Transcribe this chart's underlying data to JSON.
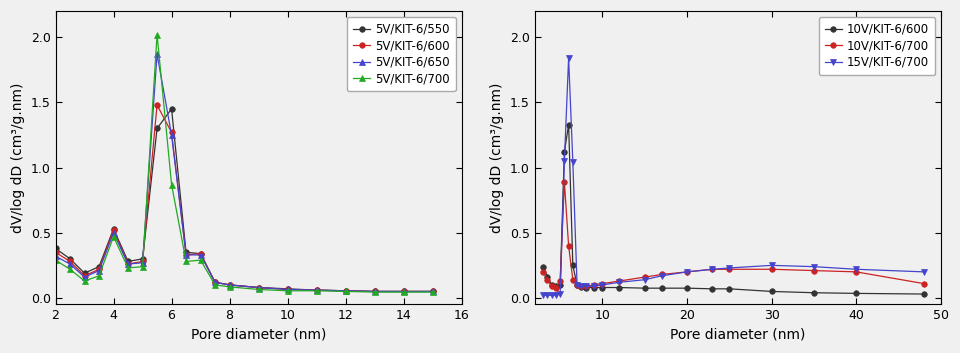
{
  "left": {
    "series": [
      {
        "label": "5V/KIT-6/550",
        "color": "#333333",
        "marker": "o",
        "markersize": 4,
        "x": [
          2.0,
          2.5,
          3.0,
          3.5,
          4.0,
          4.5,
          5.0,
          5.5,
          6.0,
          6.5,
          7.0,
          7.5,
          8.0,
          9.0,
          10.0,
          11.0,
          12.0,
          13.0,
          14.0,
          15.0
        ],
        "y": [
          0.38,
          0.3,
          0.19,
          0.24,
          0.53,
          0.28,
          0.3,
          1.3,
          1.45,
          0.35,
          0.34,
          0.12,
          0.1,
          0.08,
          0.07,
          0.06,
          0.055,
          0.05,
          0.05,
          0.05
        ]
      },
      {
        "label": "5V/KIT-6/600",
        "color": "#cc2222",
        "marker": "o",
        "markersize": 4,
        "x": [
          2.0,
          2.5,
          3.0,
          3.5,
          4.0,
          4.5,
          5.0,
          5.5,
          6.0,
          6.5,
          7.0,
          7.5,
          8.0,
          9.0,
          10.0,
          11.0,
          12.0,
          13.0,
          14.0,
          15.0
        ],
        "y": [
          0.35,
          0.28,
          0.17,
          0.22,
          0.52,
          0.26,
          0.28,
          1.48,
          1.27,
          0.33,
          0.34,
          0.12,
          0.1,
          0.08,
          0.065,
          0.06,
          0.055,
          0.05,
          0.05,
          0.05
        ]
      },
      {
        "label": "5V/KIT-6/650",
        "color": "#4444cc",
        "marker": "^",
        "markersize": 4,
        "x": [
          2.0,
          2.5,
          3.0,
          3.5,
          4.0,
          4.5,
          5.0,
          5.5,
          6.0,
          6.5,
          7.0,
          7.5,
          8.0,
          9.0,
          10.0,
          11.0,
          12.0,
          13.0,
          14.0,
          15.0
        ],
        "y": [
          0.32,
          0.26,
          0.16,
          0.21,
          0.5,
          0.26,
          0.27,
          1.87,
          1.25,
          0.33,
          0.33,
          0.12,
          0.1,
          0.08,
          0.065,
          0.06,
          0.055,
          0.05,
          0.05,
          0.05
        ]
      },
      {
        "label": "5V/KIT-6/700",
        "color": "#22aa22",
        "marker": "^",
        "markersize": 4,
        "x": [
          2.0,
          2.5,
          3.0,
          3.5,
          4.0,
          4.5,
          5.0,
          5.5,
          6.0,
          6.5,
          7.0,
          7.5,
          8.0,
          9.0,
          10.0,
          11.0,
          12.0,
          13.0,
          14.0,
          15.0
        ],
        "y": [
          0.29,
          0.22,
          0.13,
          0.17,
          0.47,
          0.23,
          0.24,
          2.02,
          0.87,
          0.28,
          0.29,
          0.1,
          0.085,
          0.065,
          0.055,
          0.055,
          0.05,
          0.045,
          0.045,
          0.045
        ]
      }
    ],
    "xlabel": "Pore diameter (nm)",
    "ylabel": "dV/log dD (cm³/g.nm)",
    "xlim": [
      2,
      16
    ],
    "ylim": [
      -0.05,
      2.2
    ],
    "xticks": [
      2,
      4,
      6,
      8,
      10,
      12,
      14,
      16
    ],
    "yticks": [
      0.0,
      0.5,
      1.0,
      1.5,
      2.0
    ]
  },
  "right": {
    "series": [
      {
        "label": "10V/KIT-6/600",
        "color": "#333333",
        "marker": "o",
        "markersize": 4,
        "x": [
          3.0,
          3.5,
          4.0,
          4.5,
          5.0,
          5.5,
          6.0,
          6.5,
          7.0,
          7.5,
          8.0,
          9.0,
          10.0,
          12.0,
          15.0,
          17.0,
          20.0,
          23.0,
          25.0,
          30.0,
          35.0,
          40.0,
          48.0
        ],
        "y": [
          0.24,
          0.16,
          0.1,
          0.09,
          0.1,
          1.12,
          1.33,
          0.25,
          0.1,
          0.085,
          0.08,
          0.08,
          0.08,
          0.08,
          0.075,
          0.075,
          0.075,
          0.07,
          0.07,
          0.05,
          0.04,
          0.035,
          0.03
        ]
      },
      {
        "label": "10V/KIT-6/700",
        "color": "#cc2222",
        "marker": "o",
        "markersize": 4,
        "x": [
          3.0,
          3.5,
          4.0,
          4.5,
          5.0,
          5.5,
          6.0,
          6.5,
          7.0,
          7.5,
          8.0,
          9.0,
          10.0,
          12.0,
          15.0,
          17.0,
          20.0,
          23.0,
          25.0,
          30.0,
          35.0,
          40.0,
          48.0
        ],
        "y": [
          0.2,
          0.14,
          0.09,
          0.08,
          0.13,
          0.89,
          0.4,
          0.14,
          0.1,
          0.09,
          0.09,
          0.1,
          0.11,
          0.13,
          0.16,
          0.18,
          0.2,
          0.22,
          0.22,
          0.22,
          0.21,
          0.2,
          0.11
        ]
      },
      {
        "label": "15V/KIT-6/700",
        "color": "#4444cc",
        "marker": "v",
        "markersize": 4,
        "x": [
          3.0,
          3.5,
          4.0,
          4.5,
          5.0,
          5.5,
          6.0,
          6.5,
          7.0,
          7.5,
          8.0,
          9.0,
          10.0,
          12.0,
          15.0,
          17.0,
          20.0,
          23.0,
          25.0,
          30.0,
          35.0,
          40.0,
          48.0
        ],
        "y": [
          0.02,
          0.02,
          0.02,
          0.02,
          0.03,
          1.05,
          1.84,
          1.04,
          0.1,
          0.09,
          0.09,
          0.09,
          0.1,
          0.12,
          0.14,
          0.17,
          0.2,
          0.22,
          0.23,
          0.25,
          0.24,
          0.22,
          0.2
        ]
      }
    ],
    "xlabel": "Pore diameter (nm)",
    "ylabel": "dV/log dD (cm³/g.nm)",
    "xlim": [
      2,
      50
    ],
    "ylim": [
      -0.05,
      2.2
    ],
    "xticks": [
      10,
      20,
      30,
      40,
      50
    ],
    "yticks": [
      0.0,
      0.5,
      1.0,
      1.5,
      2.0
    ]
  },
  "background_color": "#f0f0f0",
  "tick_fontsize": 9,
  "label_fontsize": 10,
  "legend_fontsize": 8.5,
  "linewidth": 0.9
}
